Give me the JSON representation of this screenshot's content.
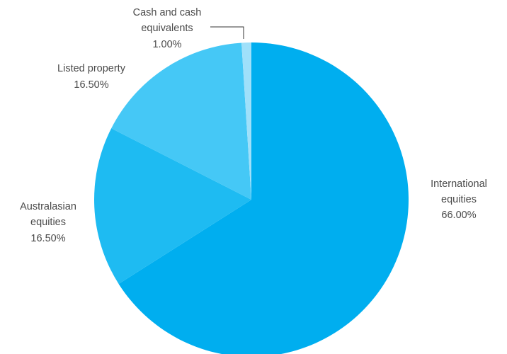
{
  "chart_data": {
    "type": "pie",
    "title": "",
    "start_angle_deg": 0,
    "direction": "clockwise",
    "slices": [
      {
        "label_lines": [
          "International",
          "equities"
        ],
        "value_label": "66.00%",
        "value": 66.0,
        "color": "#00aeef"
      },
      {
        "label_lines": [
          "Australasian",
          "equities"
        ],
        "value_label": "16.50%",
        "value": 16.5,
        "color": "#1ebbf2"
      },
      {
        "label_lines": [
          "Listed property"
        ],
        "value_label": "16.50%",
        "value": 16.5,
        "color": "#45c8f6"
      },
      {
        "label_lines": [
          "Cash and cash",
          "equivalents"
        ],
        "value_label": "1.00%",
        "value": 1.0,
        "color": "#9fe0fa"
      }
    ],
    "legend": "none",
    "labels_placement": "outside"
  }
}
